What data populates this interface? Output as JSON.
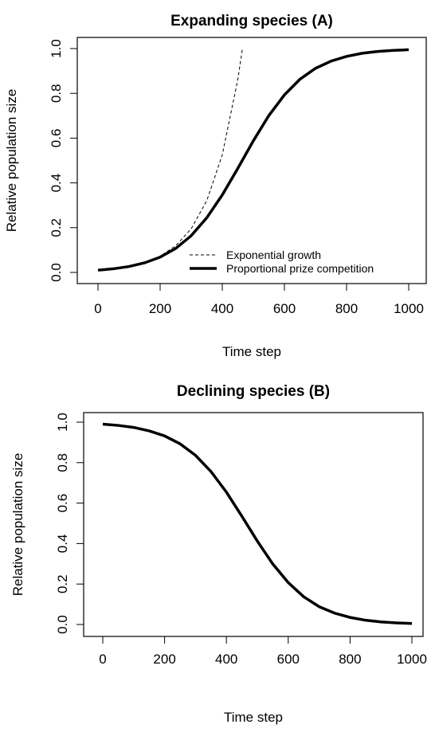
{
  "chart_data": [
    {
      "type": "line",
      "title": "Expanding species (A)",
      "xlabel": "Time step",
      "ylabel": "Relative population size",
      "xlim": [
        0,
        1000
      ],
      "ylim": [
        0,
        1
      ],
      "xticks": [
        0,
        200,
        400,
        600,
        800,
        1000
      ],
      "yticks": [
        {
          "value": 0,
          "label": "0.0"
        },
        0.2,
        0.4,
        0.6,
        0.8,
        {
          "value": 1,
          "label": "1.0"
        }
      ],
      "legend": "bottomright",
      "series": [
        {
          "name": "Exponential growth",
          "color": "#000000",
          "dash": true,
          "width": 1,
          "x": [
            0,
            50,
            100,
            150,
            200,
            250,
            300,
            350,
            400,
            450,
            465
          ],
          "values": [
            0.01,
            0.0164,
            0.0269,
            0.0441,
            0.0724,
            0.119,
            0.195,
            0.32,
            0.525,
            0.862,
            1.0
          ]
        },
        {
          "name": "Proportional prize competition",
          "color": "#000000",
          "dash": false,
          "width": 3.5,
          "x": [
            0,
            50,
            100,
            150,
            200,
            250,
            300,
            350,
            400,
            450,
            500,
            550,
            600,
            650,
            700,
            750,
            800,
            850,
            900,
            950,
            1000
          ],
          "values": [
            0.01,
            0.0163,
            0.0265,
            0.0427,
            0.0682,
            0.107,
            0.164,
            0.244,
            0.346,
            0.465,
            0.588,
            0.701,
            0.793,
            0.863,
            0.912,
            0.944,
            0.965,
            0.979,
            0.987,
            0.992,
            0.995
          ]
        }
      ]
    },
    {
      "type": "line",
      "title": "Declining species (B)",
      "xlabel": "Time step",
      "ylabel": "Relative population size",
      "xlim": [
        0,
        1000
      ],
      "ylim": [
        0,
        1
      ],
      "xticks": [
        0,
        200,
        400,
        600,
        800,
        1000
      ],
      "yticks": [
        {
          "value": 0,
          "label": "0.0"
        },
        0.2,
        0.4,
        0.6,
        0.8,
        {
          "value": 1,
          "label": "1.0"
        }
      ],
      "series": [
        {
          "color": "#000000",
          "dash": false,
          "width": 3.5,
          "x": [
            0,
            50,
            100,
            150,
            200,
            250,
            300,
            350,
            400,
            450,
            500,
            550,
            600,
            650,
            700,
            750,
            800,
            850,
            900,
            950,
            1000
          ],
          "values": [
            0.99,
            0.984,
            0.974,
            0.957,
            0.932,
            0.893,
            0.836,
            0.756,
            0.654,
            0.535,
            0.412,
            0.299,
            0.207,
            0.137,
            0.088,
            0.056,
            0.035,
            0.021,
            0.013,
            0.008,
            0.005
          ]
        }
      ]
    }
  ]
}
